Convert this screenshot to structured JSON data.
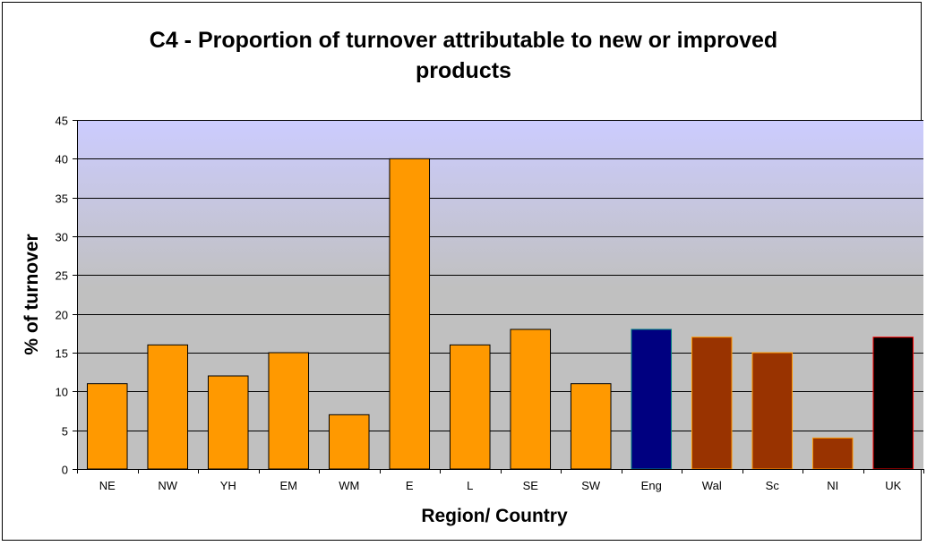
{
  "chart_data": {
    "type": "bar",
    "title": "C4 - Proportion of turnover attributable to new or improved\nproducts",
    "xlabel": "Region/ Country",
    "ylabel": "% of turnover",
    "categories": [
      "NE",
      "NW",
      "YH",
      "EM",
      "WM",
      "E",
      "L",
      "SE",
      "SW",
      "Eng",
      "Wal",
      "Sc",
      "NI",
      "UK"
    ],
    "values": [
      11,
      16,
      12,
      15,
      7,
      40,
      16,
      18,
      11,
      18,
      17,
      15,
      4,
      17
    ],
    "bar_colors": [
      "#ff9900",
      "#ff9900",
      "#ff9900",
      "#ff9900",
      "#ff9900",
      "#ff9900",
      "#ff9900",
      "#ff9900",
      "#ff9900",
      "#000080",
      "#993300",
      "#993300",
      "#993300",
      "#000000"
    ],
    "bar_edge_colors": [
      "#000000",
      "#000000",
      "#000000",
      "#000000",
      "#000000",
      "#000000",
      "#000000",
      "#000000",
      "#000000",
      "#008080",
      "#ff9900",
      "#ff9900",
      "#ff9900",
      "#ff0000"
    ],
    "ylim": [
      0,
      45
    ],
    "yticks": [
      0,
      5,
      10,
      15,
      20,
      25,
      30,
      35,
      40,
      45
    ],
    "grid": true,
    "legend": false,
    "background_gradient": [
      "#ccccff",
      "#c0c0c0"
    ]
  }
}
